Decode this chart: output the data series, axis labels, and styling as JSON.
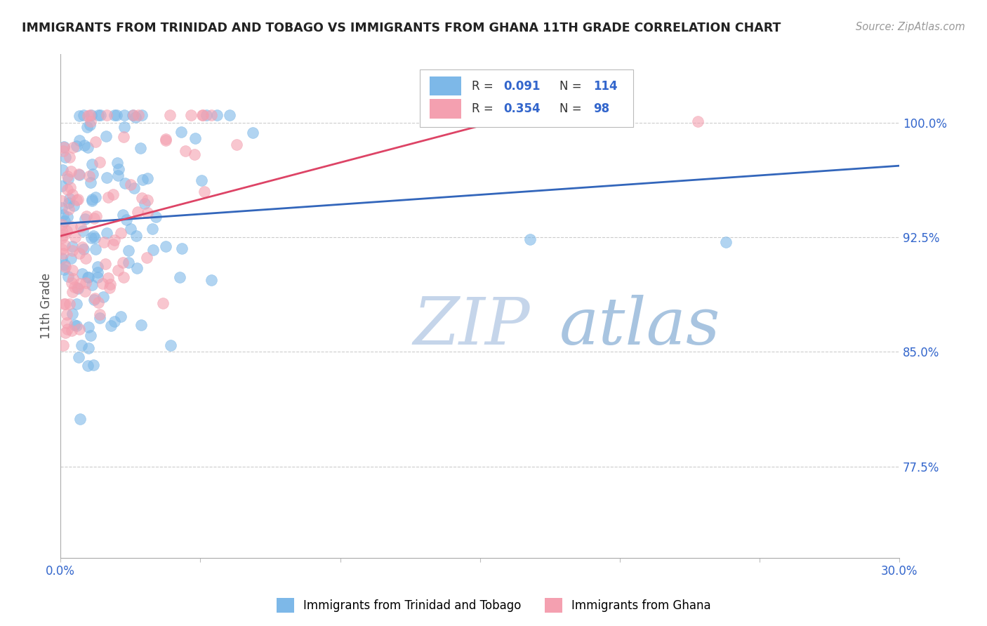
{
  "title": "IMMIGRANTS FROM TRINIDAD AND TOBAGO VS IMMIGRANTS FROM GHANA 11TH GRADE CORRELATION CHART",
  "source": "Source: ZipAtlas.com",
  "ylabel": "11th Grade",
  "yticks": [
    "77.5%",
    "85.0%",
    "92.5%",
    "100.0%"
  ],
  "ytick_vals": [
    0.775,
    0.85,
    0.925,
    1.0
  ],
  "xlim": [
    0.0,
    0.3
  ],
  "ylim": [
    0.715,
    1.045
  ],
  "blue_color": "#7db8e8",
  "pink_color": "#f4a0b0",
  "blue_line_color": "#3366bb",
  "pink_line_color": "#dd4466",
  "legend_text_color": "#3366cc",
  "title_color": "#222222",
  "grid_color": "#cccccc",
  "watermark_zip_color": "#c8d8f0",
  "watermark_atlas_color": "#a8c4e8",
  "blue_line_x": [
    0.0,
    0.3
  ],
  "blue_line_y": [
    0.934,
    0.972
  ],
  "pink_line_x": [
    0.0,
    0.185
  ],
  "pink_line_y": [
    0.926,
    1.015
  ]
}
